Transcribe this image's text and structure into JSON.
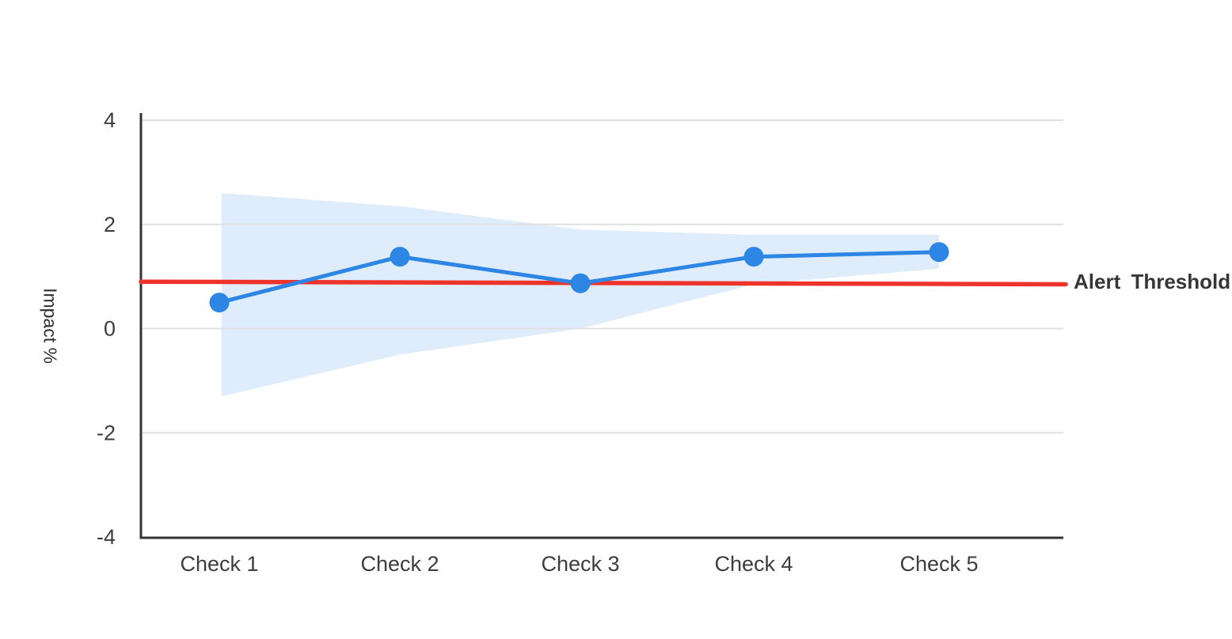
{
  "chart_data": {
    "type": "line",
    "title": "",
    "categories": [
      "Check 1",
      "Check 2",
      "Check 3",
      "Check 4",
      "Check 5"
    ],
    "series": [
      {
        "name": "Impact",
        "values": [
          0.5,
          1.38,
          0.87,
          1.38,
          1.47
        ]
      }
    ],
    "band": {
      "name": "confidence-band",
      "upper": [
        2.6,
        2.35,
        1.9,
        1.8,
        1.8
      ],
      "lower": [
        -1.3,
        -0.5,
        0.0,
        0.85,
        1.15
      ]
    },
    "threshold": {
      "label": "Alert Threshold",
      "start_value": 0.9,
      "end_value": 0.85
    },
    "ylabel": "Impact %",
    "xlabel": "",
    "yticks": [
      4,
      2,
      0,
      -2,
      -4
    ],
    "ylim": [
      -4,
      4
    ],
    "grid": true,
    "legend": "none",
    "colors": {
      "line": "#2e86e4",
      "band": "#dfecfb",
      "threshold": "#ee332b",
      "grid": "#e0e0e0",
      "axis": "#333333",
      "tick_text": "#3d3d3d",
      "label_text": "#363636"
    }
  }
}
